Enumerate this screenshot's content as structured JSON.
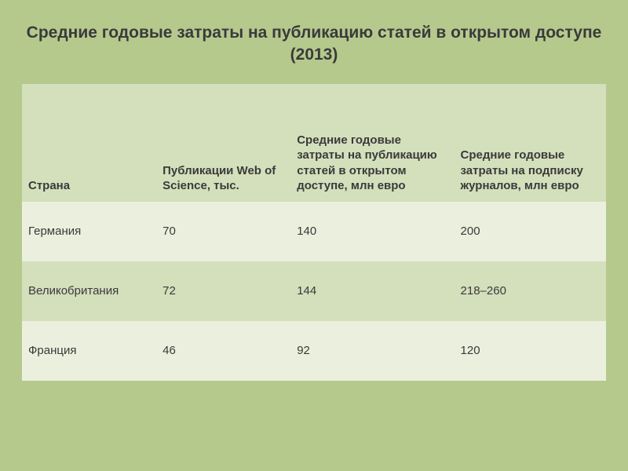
{
  "title": "Средние годовые затраты на публикацию статей в открытом доступе (2013)",
  "table": {
    "type": "table",
    "background_color": "#b6c98d",
    "header_bg": "#d4dfbc",
    "row_odd_bg": "#eaf0dd",
    "row_even_bg": "#d4dfbc",
    "text_color": "#3a3a3a",
    "title_fontsize": 21,
    "cell_fontsize": 15,
    "col_widths_pct": [
      23,
      23,
      28,
      26
    ],
    "columns": [
      "Страна",
      "Публикации Web of Science, тыс.",
      "Средние годовые затраты на публикацию статей в открытом доступе, млн евро",
      "Средние годовые затраты на подписку журналов, млн евро"
    ],
    "rows": [
      [
        "Германия",
        "70",
        "140",
        "200"
      ],
      [
        "Великобритания",
        "72",
        "144",
        "218–260"
      ],
      [
        "Франция",
        "46",
        "92",
        "120"
      ]
    ]
  }
}
